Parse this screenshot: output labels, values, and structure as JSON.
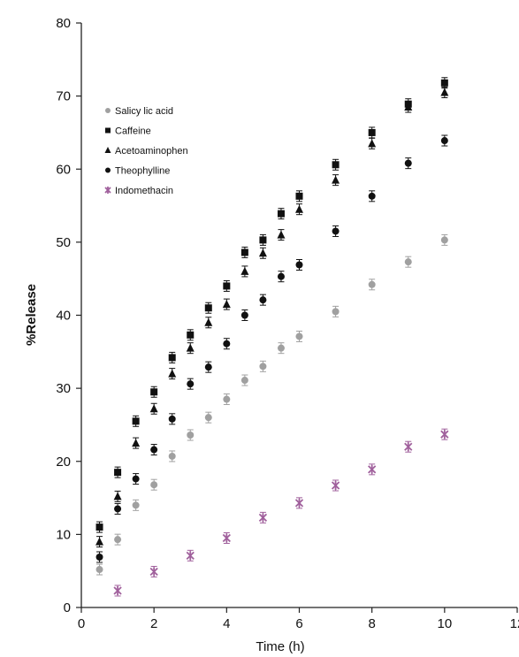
{
  "chart_data": {
    "type": "scatter",
    "title": "",
    "xlabel": "Time (h)",
    "ylabel": "%Release",
    "xlim": [
      0,
      12
    ],
    "ylim": [
      0,
      80
    ],
    "xticks": [
      0,
      2,
      4,
      6,
      8,
      10,
      12
    ],
    "yticks": [
      0,
      10,
      20,
      30,
      40,
      50,
      60,
      70,
      80
    ],
    "grid": false,
    "legend": "upper-left",
    "series": [
      {
        "name": "Salicy lic acid",
        "marker": "circle",
        "color": "#a0a0a0",
        "x": [
          0.5,
          1,
          1.5,
          2,
          2.5,
          3,
          3.5,
          4,
          4.5,
          5,
          5.5,
          6,
          7,
          8,
          9,
          10
        ],
        "y": [
          5.2,
          9.3,
          14.0,
          16.8,
          20.7,
          23.6,
          26.0,
          28.5,
          31.1,
          33.0,
          35.5,
          37.1,
          40.5,
          44.2,
          47.3,
          50.3
        ]
      },
      {
        "name": "Caffeine",
        "marker": "square",
        "color": "#111111",
        "x": [
          0.5,
          1,
          1.5,
          2,
          2.5,
          3,
          3.5,
          4,
          4.5,
          5,
          5.5,
          6,
          7,
          8,
          9,
          10
        ],
        "y": [
          11.0,
          18.5,
          25.5,
          29.5,
          34.2,
          37.3,
          41.0,
          44.0,
          48.6,
          50.3,
          53.9,
          56.3,
          60.6,
          65.0,
          68.9,
          71.8
        ]
      },
      {
        "name": "Acetoaminophen",
        "marker": "triangle",
        "color": "#111111",
        "x": [
          0.5,
          1,
          1.5,
          2,
          2.5,
          3,
          3.5,
          4,
          4.5,
          5,
          5.5,
          6,
          7,
          8,
          9,
          10
        ],
        "y": [
          9.0,
          15.2,
          22.5,
          27.2,
          32.0,
          35.5,
          39.0,
          41.5,
          46.0,
          48.5,
          51.0,
          54.5,
          58.5,
          63.5,
          68.5,
          70.5
        ]
      },
      {
        "name": "Theophylline",
        "marker": "circle",
        "color": "#111111",
        "x": [
          0.5,
          1,
          1.5,
          2,
          2.5,
          3,
          3.5,
          4,
          4.5,
          5,
          5.5,
          6,
          7,
          8,
          9,
          10
        ],
        "y": [
          6.9,
          13.5,
          17.6,
          21.6,
          25.8,
          30.6,
          32.9,
          36.1,
          40.0,
          42.1,
          45.3,
          46.9,
          51.5,
          56.3,
          60.8,
          63.9
        ]
      },
      {
        "name": "Indomethacin",
        "marker": "star",
        "color": "#a0609c",
        "x": [
          1,
          2,
          3,
          4,
          5,
          6,
          7,
          8,
          9,
          10
        ],
        "y": [
          2.3,
          4.9,
          7.1,
          9.5,
          12.3,
          14.3,
          16.7,
          18.9,
          22.0,
          23.7
        ]
      }
    ]
  }
}
